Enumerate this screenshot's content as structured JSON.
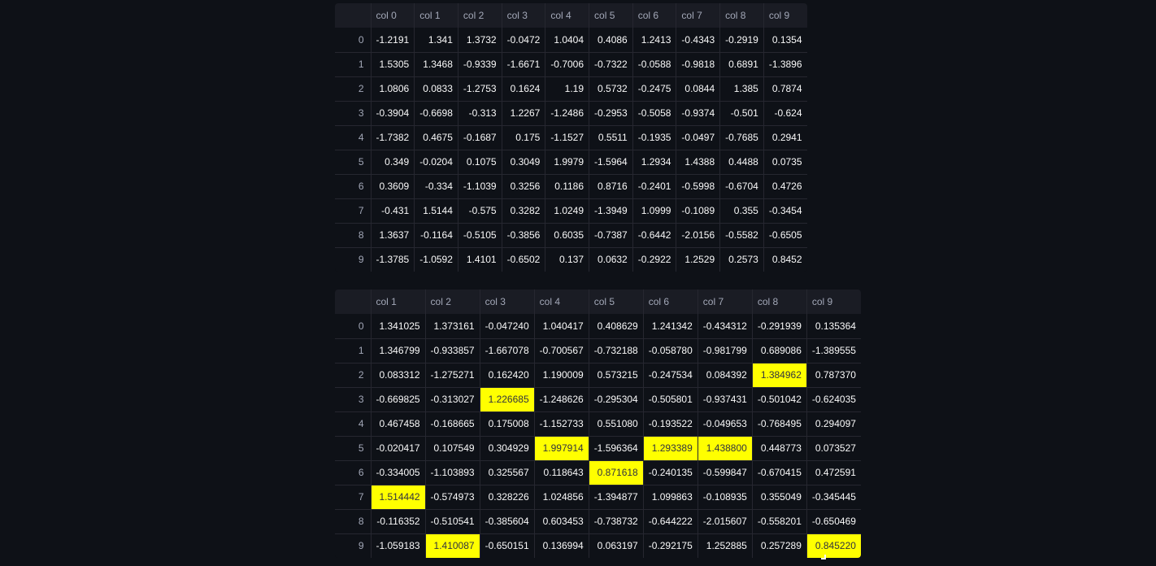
{
  "table1": {
    "columns": [
      "col 0",
      "col 1",
      "col 2",
      "col 3",
      "col 4",
      "col 5",
      "col 6",
      "col 7",
      "col 8",
      "col 9"
    ],
    "rows": [
      {
        "index": "0",
        "values": [
          "-1.2191",
          "1.341",
          "1.3732",
          "-0.0472",
          "1.0404",
          "0.4086",
          "1.2413",
          "-0.4343",
          "-0.2919",
          "0.1354"
        ]
      },
      {
        "index": "1",
        "values": [
          "1.5305",
          "1.3468",
          "-0.9339",
          "-1.6671",
          "-0.7006",
          "-0.7322",
          "-0.0588",
          "-0.9818",
          "0.6891",
          "-1.3896"
        ]
      },
      {
        "index": "2",
        "values": [
          "1.0806",
          "0.0833",
          "-1.2753",
          "0.1624",
          "1.19",
          "0.5732",
          "-0.2475",
          "0.0844",
          "1.385",
          "0.7874"
        ]
      },
      {
        "index": "3",
        "values": [
          "-0.3904",
          "-0.6698",
          "-0.313",
          "1.2267",
          "-1.2486",
          "-0.2953",
          "-0.5058",
          "-0.9374",
          "-0.501",
          "-0.624"
        ]
      },
      {
        "index": "4",
        "values": [
          "-1.7382",
          "0.4675",
          "-0.1687",
          "0.175",
          "-1.1527",
          "0.5511",
          "-0.1935",
          "-0.0497",
          "-0.7685",
          "0.2941"
        ]
      },
      {
        "index": "5",
        "values": [
          "0.349",
          "-0.0204",
          "0.1075",
          "0.3049",
          "1.9979",
          "-1.5964",
          "1.2934",
          "1.4388",
          "0.4488",
          "0.0735"
        ]
      },
      {
        "index": "6",
        "values": [
          "0.3609",
          "-0.334",
          "-1.1039",
          "0.3256",
          "0.1186",
          "0.8716",
          "-0.2401",
          "-0.5998",
          "-0.6704",
          "0.4726"
        ]
      },
      {
        "index": "7",
        "values": [
          "-0.431",
          "1.5144",
          "-0.575",
          "0.3282",
          "1.0249",
          "-1.3949",
          "1.0999",
          "-0.1089",
          "0.355",
          "-0.3454"
        ]
      },
      {
        "index": "8",
        "values": [
          "1.3637",
          "-0.1164",
          "-0.5105",
          "-0.3856",
          "0.6035",
          "-0.7387",
          "-0.6442",
          "-2.0156",
          "-0.5582",
          "-0.6505"
        ]
      },
      {
        "index": "9",
        "values": [
          "-1.3785",
          "-1.0592",
          "1.4101",
          "-0.6502",
          "0.137",
          "0.0632",
          "-0.2922",
          "1.2529",
          "0.2573",
          "0.8452"
        ]
      }
    ]
  },
  "table2": {
    "highlight_color": "#ffff00",
    "columns": [
      "col 1",
      "col 2",
      "col 3",
      "col 4",
      "col 5",
      "col 6",
      "col 7",
      "col 8",
      "col 9"
    ],
    "rows": [
      {
        "index": "0",
        "values": [
          "1.341025",
          "1.373161",
          "-0.047240",
          "1.040417",
          "0.408629",
          "1.241342",
          "-0.434312",
          "-0.291939",
          "0.135364"
        ],
        "highlight": []
      },
      {
        "index": "1",
        "values": [
          "1.346799",
          "-0.933857",
          "-1.667078",
          "-0.700567",
          "-0.732188",
          "-0.058780",
          "-0.981799",
          "0.689086",
          "-1.389555"
        ],
        "highlight": []
      },
      {
        "index": "2",
        "values": [
          "0.083312",
          "-1.275271",
          "0.162420",
          "1.190009",
          "0.573215",
          "-0.247534",
          "0.084392",
          "1.384962",
          "0.787370"
        ],
        "highlight": [
          7
        ]
      },
      {
        "index": "3",
        "values": [
          "-0.669825",
          "-0.313027",
          "1.226685",
          "-1.248626",
          "-0.295304",
          "-0.505801",
          "-0.937431",
          "-0.501042",
          "-0.624035"
        ],
        "highlight": [
          2
        ]
      },
      {
        "index": "4",
        "values": [
          "0.467458",
          "-0.168665",
          "0.175008",
          "-1.152733",
          "0.551080",
          "-0.193522",
          "-0.049653",
          "-0.768495",
          "0.294097"
        ],
        "highlight": []
      },
      {
        "index": "5",
        "values": [
          "-0.020417",
          "0.107549",
          "0.304929",
          "1.997914",
          "-1.596364",
          "1.293389",
          "1.438800",
          "0.448773",
          "0.073527"
        ],
        "highlight": [
          3,
          5,
          6
        ]
      },
      {
        "index": "6",
        "values": [
          "-0.334005",
          "-1.103893",
          "0.325567",
          "0.118643",
          "0.871618",
          "-0.240135",
          "-0.599847",
          "-0.670415",
          "0.472591"
        ],
        "highlight": [
          4
        ]
      },
      {
        "index": "7",
        "values": [
          "1.514442",
          "-0.574973",
          "0.328226",
          "1.024856",
          "-1.394877",
          "1.099863",
          "-0.108935",
          "0.355049",
          "-0.345445"
        ],
        "highlight": [
          0
        ]
      },
      {
        "index": "8",
        "values": [
          "-0.116352",
          "-0.510541",
          "-0.385604",
          "0.603453",
          "-0.738732",
          "-0.644222",
          "-2.015607",
          "-0.558201",
          "-0.650469"
        ],
        "highlight": []
      },
      {
        "index": "9",
        "values": [
          "-1.059183",
          "1.410087",
          "-0.650151",
          "0.136994",
          "0.063197",
          "-0.292175",
          "1.252885",
          "0.257289",
          "0.845220"
        ],
        "highlight": [
          1,
          8
        ]
      }
    ]
  }
}
